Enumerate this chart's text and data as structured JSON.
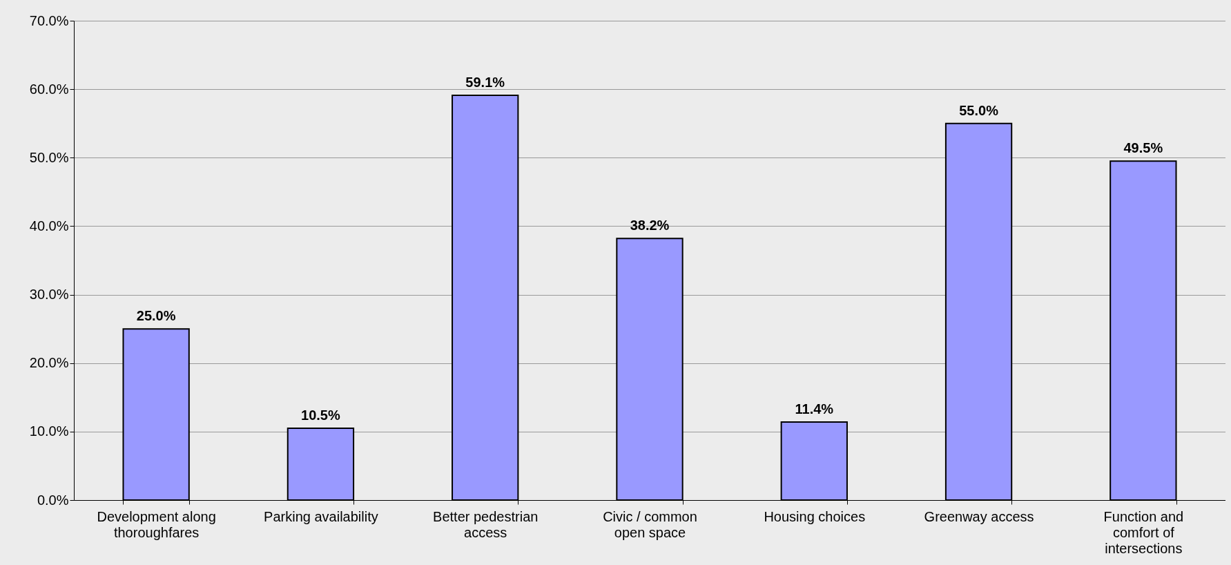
{
  "chart_data": {
    "type": "bar",
    "categories": [
      "Development along thoroughfares",
      "Parking availability",
      "Better pedestrian access",
      "Civic / common open space",
      "Housing choices",
      "Greenway access",
      "Function and comfort of intersections"
    ],
    "values": [
      25.0,
      10.5,
      59.1,
      38.2,
      11.4,
      55.0,
      49.5
    ],
    "value_labels": [
      "25.0%",
      "10.5%",
      "59.1%",
      "38.2%",
      "11.4%",
      "55.0%",
      "49.5%"
    ],
    "color": "#9999ff",
    "ylim": [
      0,
      70
    ],
    "yticks": [
      {
        "value": 0,
        "label": "0.0%"
      },
      {
        "value": 10,
        "label": "10.0%"
      },
      {
        "value": 20,
        "label": "20.0%"
      },
      {
        "value": 30,
        "label": "30.0%"
      },
      {
        "value": 40,
        "label": "40.0%"
      },
      {
        "value": 50,
        "label": "50.0%"
      },
      {
        "value": 60,
        "label": "60.0%"
      },
      {
        "value": 70,
        "label": "70.0%"
      }
    ],
    "grid": "y"
  }
}
